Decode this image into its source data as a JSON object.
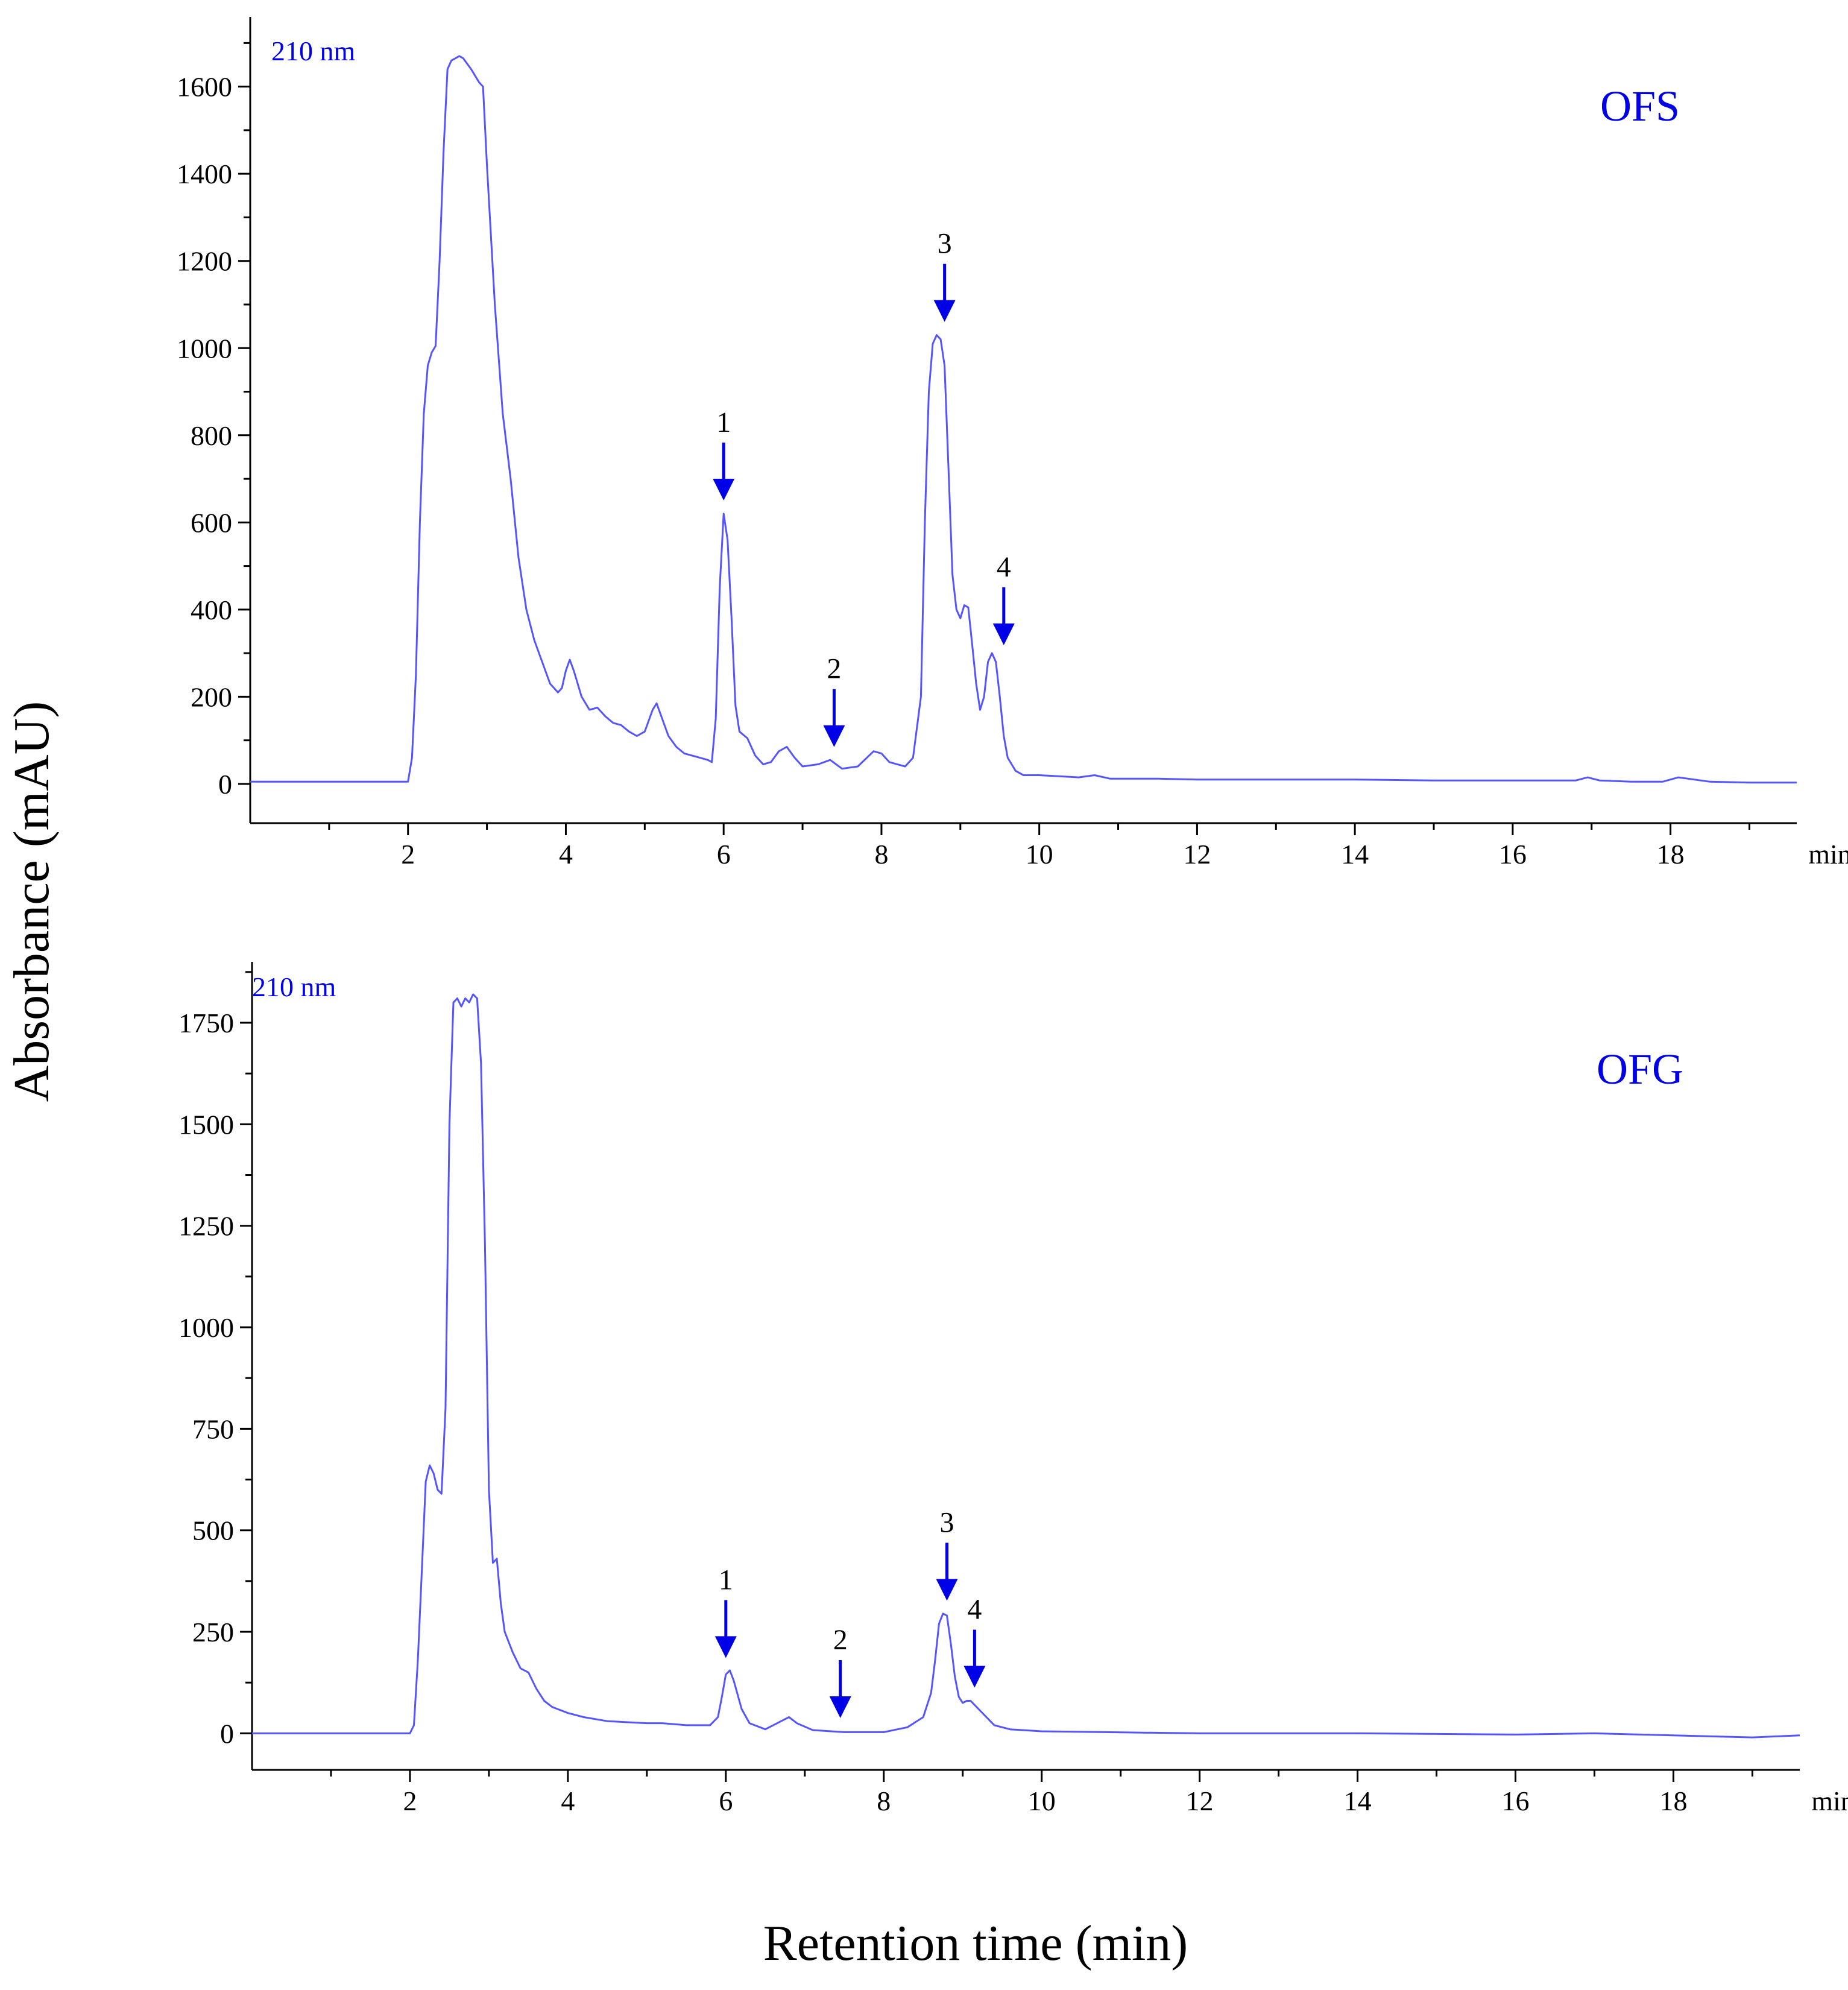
{
  "chart_data": [
    {
      "type": "line",
      "panel": "top",
      "sample_label": "OFS",
      "wavelength_label": "210 nm",
      "x_unit_label": "min",
      "xlim": [
        0,
        19.6
      ],
      "ylim": [
        -90,
        1760
      ],
      "x_ticks": [
        2,
        4,
        6,
        8,
        10,
        12,
        14,
        16,
        18
      ],
      "y_ticks": [
        0,
        200,
        400,
        600,
        800,
        1000,
        1200,
        1400,
        1600
      ],
      "color": "#5555ff",
      "series": [
        {
          "name": "OFS 210 nm",
          "x": [
            0,
            1.9,
            2.0,
            2.05,
            2.1,
            2.15,
            2.2,
            2.25,
            2.3,
            2.35,
            2.4,
            2.45,
            2.5,
            2.55,
            2.6,
            2.65,
            2.7,
            2.8,
            2.9,
            2.95,
            3.0,
            3.1,
            3.2,
            3.3,
            3.4,
            3.5,
            3.6,
            3.7,
            3.8,
            3.9,
            3.95,
            4.0,
            4.05,
            4.1,
            4.2,
            4.3,
            4.4,
            4.5,
            4.6,
            4.7,
            4.8,
            4.9,
            5.0,
            5.1,
            5.15,
            5.2,
            5.3,
            5.4,
            5.5,
            5.6,
            5.7,
            5.8,
            5.85,
            5.9,
            5.95,
            6.0,
            6.05,
            6.1,
            6.15,
            6.2,
            6.3,
            6.4,
            6.5,
            6.6,
            6.7,
            6.8,
            6.9,
            7.0,
            7.2,
            7.35,
            7.5,
            7.7,
            7.9,
            8.0,
            8.1,
            8.2,
            8.3,
            8.4,
            8.5,
            8.55,
            8.6,
            8.65,
            8.7,
            8.75,
            8.8,
            8.85,
            8.9,
            8.95,
            9.0,
            9.05,
            9.1,
            9.15,
            9.2,
            9.25,
            9.3,
            9.35,
            9.4,
            9.45,
            9.5,
            9.55,
            9.6,
            9.7,
            9.8,
            10.0,
            10.5,
            10.7,
            10.9,
            11.5,
            12.0,
            13.0,
            14.0,
            15.0,
            16.0,
            16.8,
            16.95,
            17.1,
            17.5,
            17.9,
            18.1,
            18.5,
            19.0,
            19.6
          ],
          "values": [
            5,
            5,
            5,
            60,
            250,
            600,
            850,
            960,
            990,
            1005,
            1200,
            1450,
            1640,
            1660,
            1665,
            1670,
            1665,
            1640,
            1610,
            1600,
            1420,
            1100,
            850,
            700,
            520,
            400,
            330,
            280,
            230,
            210,
            220,
            260,
            285,
            260,
            200,
            170,
            175,
            155,
            140,
            135,
            120,
            110,
            120,
            170,
            185,
            160,
            110,
            85,
            70,
            65,
            60,
            55,
            50,
            150,
            450,
            620,
            560,
            380,
            180,
            120,
            105,
            65,
            45,
            50,
            75,
            85,
            60,
            40,
            45,
            55,
            35,
            40,
            75,
            70,
            50,
            45,
            40,
            60,
            200,
            600,
            900,
            1010,
            1030,
            1020,
            960,
            720,
            480,
            400,
            380,
            410,
            405,
            320,
            230,
            170,
            200,
            280,
            300,
            280,
            200,
            110,
            60,
            30,
            20,
            20,
            15,
            20,
            12,
            12,
            10,
            10,
            10,
            8,
            8,
            8,
            15,
            8,
            5,
            5,
            15,
            5,
            3,
            3
          ]
        }
      ],
      "annotations": [
        {
          "label": "1",
          "x": 6.0
        },
        {
          "label": "2",
          "x": 7.4
        },
        {
          "label": "3",
          "x": 8.8
        },
        {
          "label": "4",
          "x": 9.55
        }
      ]
    },
    {
      "type": "line",
      "panel": "bottom",
      "sample_label": "OFG",
      "wavelength_label": "210 nm",
      "x_unit_label": "min",
      "xlim": [
        0,
        19.6
      ],
      "ylim": [
        -90,
        1900
      ],
      "x_ticks": [
        2,
        4,
        6,
        8,
        10,
        12,
        14,
        16,
        18
      ],
      "y_ticks": [
        0,
        250,
        500,
        750,
        1000,
        1250,
        1500,
        1750
      ],
      "color": "#5555ff",
      "series": [
        {
          "name": "OFG 210 nm",
          "x": [
            0,
            1.9,
            2.0,
            2.05,
            2.1,
            2.15,
            2.2,
            2.25,
            2.3,
            2.35,
            2.4,
            2.45,
            2.5,
            2.55,
            2.6,
            2.65,
            2.7,
            2.75,
            2.8,
            2.85,
            2.9,
            2.95,
            3.0,
            3.05,
            3.1,
            3.15,
            3.2,
            3.3,
            3.4,
            3.5,
            3.6,
            3.7,
            3.8,
            4.0,
            4.2,
            4.5,
            5.0,
            5.2,
            5.5,
            5.8,
            5.9,
            5.95,
            6.0,
            6.05,
            6.1,
            6.2,
            6.3,
            6.5,
            6.7,
            6.8,
            6.9,
            7.1,
            7.5,
            8.0,
            8.3,
            8.5,
            8.6,
            8.65,
            8.7,
            8.75,
            8.8,
            8.85,
            8.9,
            8.95,
            9.0,
            9.05,
            9.1,
            9.2,
            9.3,
            9.4,
            9.6,
            10.0,
            12.0,
            14.0,
            16.0,
            17.0,
            18.0,
            19.0,
            19.6
          ],
          "values": [
            0,
            0,
            0,
            20,
            180,
            400,
            620,
            660,
            640,
            600,
            590,
            800,
            1500,
            1800,
            1810,
            1790,
            1810,
            1800,
            1820,
            1810,
            1650,
            1200,
            600,
            420,
            430,
            320,
            250,
            200,
            160,
            150,
            110,
            80,
            65,
            50,
            40,
            30,
            25,
            25,
            20,
            20,
            40,
            90,
            145,
            155,
            130,
            60,
            25,
            10,
            30,
            40,
            25,
            8,
            3,
            3,
            15,
            40,
            100,
            180,
            270,
            295,
            290,
            220,
            140,
            90,
            75,
            80,
            80,
            60,
            40,
            20,
            10,
            5,
            0,
            0,
            -3,
            0,
            -5,
            -10,
            -5
          ]
        }
      ],
      "annotations": [
        {
          "label": "1",
          "x": 6.0
        },
        {
          "label": "2",
          "x": 7.45
        },
        {
          "label": "3",
          "x": 8.8
        },
        {
          "label": "4",
          "x": 9.15
        }
      ]
    }
  ],
  "shared": {
    "ylabel": "Absorbance (mAU)",
    "xlabel": "Retention time  (min)"
  }
}
